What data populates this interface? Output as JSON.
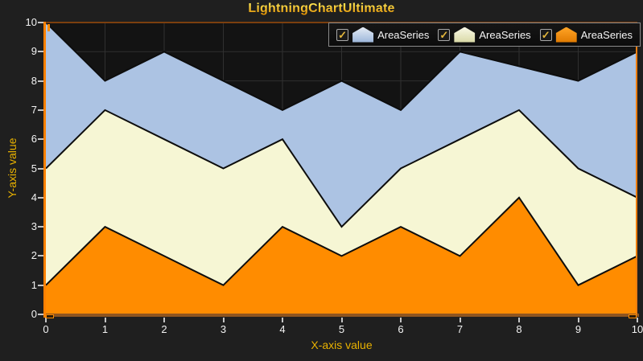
{
  "window": {
    "background": "#1F1F1F",
    "plot_background": "#131313"
  },
  "chart_data": {
    "type": "area",
    "title": "LightningChartUltimate",
    "xlabel": "X-axis value",
    "ylabel": "Y-axis value",
    "xlim": [
      0,
      10
    ],
    "ylim": [
      0,
      10
    ],
    "x_ticks": [
      0,
      1,
      2,
      3,
      4,
      5,
      6,
      7,
      8,
      9,
      10
    ],
    "y_ticks": [
      0,
      1,
      2,
      3,
      4,
      5,
      6,
      7,
      8,
      9,
      10
    ],
    "grid": true,
    "baseline": 0,
    "legend_position": "top-right",
    "x": [
      0,
      1,
      2,
      3,
      4,
      5,
      6,
      7,
      8,
      9,
      10
    ],
    "series": [
      {
        "name": "AreaSeries",
        "fill": "#ACC3E3",
        "values": [
          10,
          8,
          9,
          8,
          7,
          8,
          7,
          9,
          8.5,
          8,
          9
        ]
      },
      {
        "name": "AreaSeries",
        "fill": "#F6F6D4",
        "values": [
          5,
          7,
          6,
          5,
          6,
          3,
          5,
          6,
          7,
          5,
          4
        ]
      },
      {
        "name": "AreaSeries",
        "fill": "#FF8C00",
        "values": [
          1,
          3,
          2,
          1,
          3,
          2,
          3,
          2,
          4,
          1,
          2
        ]
      }
    ]
  },
  "legend": {
    "items": [
      {
        "label": "AreaSeries",
        "checked": true,
        "check_glyph": "✓",
        "icon": "area-icon",
        "icon_top": "#E4EBF4",
        "icon_bottom": "#9CB6DA"
      },
      {
        "label": "AreaSeries",
        "checked": true,
        "check_glyph": "✓",
        "icon": "area-icon",
        "icon_top": "#F8F8E6",
        "icon_bottom": "#D9D9A6"
      },
      {
        "label": "AreaSeries",
        "checked": true,
        "check_glyph": "✓",
        "icon": "area-icon",
        "icon_top": "#FFA426",
        "icon_bottom": "#E07A00"
      }
    ]
  },
  "colors": {
    "grid": "#303030",
    "series_outline": "#0D0D0D",
    "axis_line_left": "#FF8000",
    "axis_line_right": "#ED7D0E",
    "axis_line_top": "#7C3F0E",
    "axis_line_bottom": "#8F5520",
    "tick": "#C4C4C4",
    "tick_label": "#F2F2F2",
    "axis_title": "#E9B200",
    "title_gold": "#FFC41E"
  }
}
